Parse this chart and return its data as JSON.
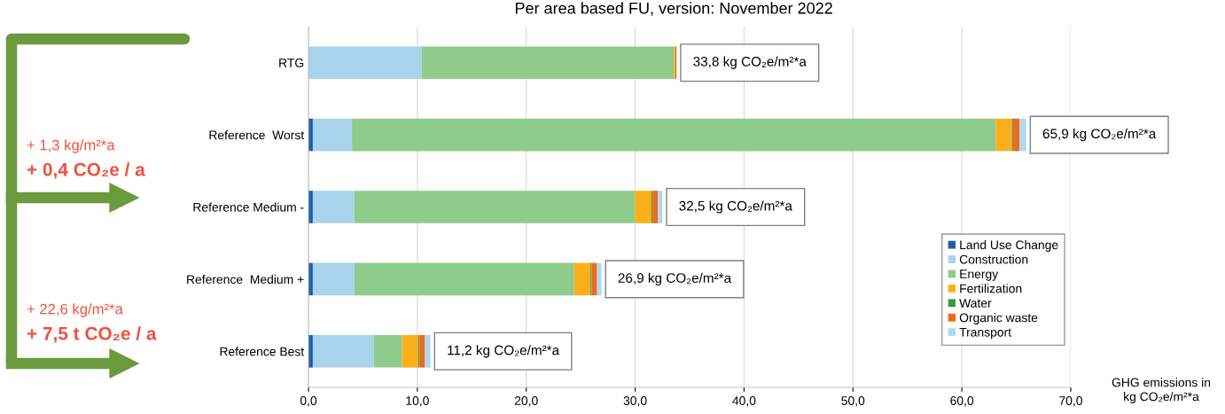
{
  "chart_data": {
    "type": "bar",
    "orientation": "horizontal",
    "stacked": true,
    "title": "Per area based FU, version: November 2022",
    "xlabel": "GHG emissions in\nkg CO₂e/m²*a",
    "categories": [
      "RTG",
      "Reference  Worst",
      "Reference Medium -",
      "Reference  Medium +",
      "Reference Best"
    ],
    "series": [
      {
        "name": "Land Use Change",
        "color": "#1f5fa8",
        "values": [
          0,
          0.4,
          0.4,
          0.4,
          0.4
        ]
      },
      {
        "name": "Construction",
        "color": "#a8d3ec",
        "values": [
          10.4,
          3.6,
          3.8,
          3.8,
          5.6
        ]
      },
      {
        "name": "Energy",
        "color": "#8fcb8b",
        "values": [
          23.2,
          59.1,
          25.8,
          20.2,
          2.6
        ]
      },
      {
        "name": "Fertilization",
        "color": "#fbb01b",
        "values": [
          0.1,
          1.5,
          1.5,
          1.5,
          1.5
        ]
      },
      {
        "name": "Water",
        "color": "#3a9a42",
        "values": [
          0,
          0.1,
          0.1,
          0.1,
          0.1
        ]
      },
      {
        "name": "Organic waste",
        "color": "#ee6a21",
        "values": [
          0.1,
          0.6,
          0.5,
          0.5,
          0.5
        ]
      },
      {
        "name": "Transport",
        "color": "#b0d8f2",
        "values": [
          0,
          0.6,
          0.4,
          0.4,
          0.5
        ]
      }
    ],
    "totals": [
      "33,8 kg CO₂e/m²*a",
      "65,9 kg CO₂e/m²*a",
      "32,5 kg CO₂e/m²*a",
      "26,9 kg CO₂e/m²*a",
      "11,2 kg CO₂e/m²*a"
    ],
    "xlim": [
      0,
      70
    ],
    "xticks": [
      {
        "value": 0,
        "label": "0,0"
      },
      {
        "value": 10,
        "label": "10,0"
      },
      {
        "value": 20,
        "label": "20,0"
      },
      {
        "value": 30,
        "label": "30,0"
      },
      {
        "value": 40,
        "label": "40,0"
      },
      {
        "value": 50,
        "label": "50,0"
      },
      {
        "value": 60,
        "label": "60,0"
      },
      {
        "value": 70,
        "label": "70,0"
      }
    ],
    "grid": "x",
    "legend": "bottom right",
    "annotations": [
      "+ 1,3 kg/m²*a",
      "+ 0,4 CO₂e / a",
      "+ 22,6 kg/m²*a",
      "+ 7,5 t CO₂e / a"
    ]
  }
}
